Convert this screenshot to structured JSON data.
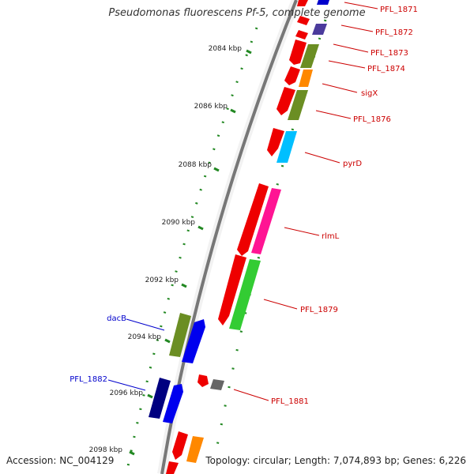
{
  "header": {
    "title": "Pseudomonas fluorescens Pf-5, complete genome"
  },
  "footer": {
    "accession": "Accession: NC_004129",
    "topology": "Topology: circular; Length: 7,074,893 bp; Genes: 6,226"
  },
  "ticks": [
    "2084 kbp",
    "2086 kbp",
    "2088 kbp",
    "2090 kbp",
    "2092 kbp",
    "2094 kbp",
    "2096 kbp",
    "2098 kbp"
  ],
  "gene_labels": {
    "right": [
      "PFL_1871",
      "PFL_1872",
      "PFL_1873",
      "PFL_1874",
      "sigX",
      "PFL_1876",
      "pyrD",
      "rlmL",
      "PFL_1879",
      "PFL_1881"
    ],
    "left": [
      "dacB",
      "PFL_1882"
    ]
  },
  "colors": {
    "forward_label": "#cc0000",
    "reverse_label": "#0000cc",
    "backbone": "#888888",
    "tick_mark": "#228822"
  }
}
